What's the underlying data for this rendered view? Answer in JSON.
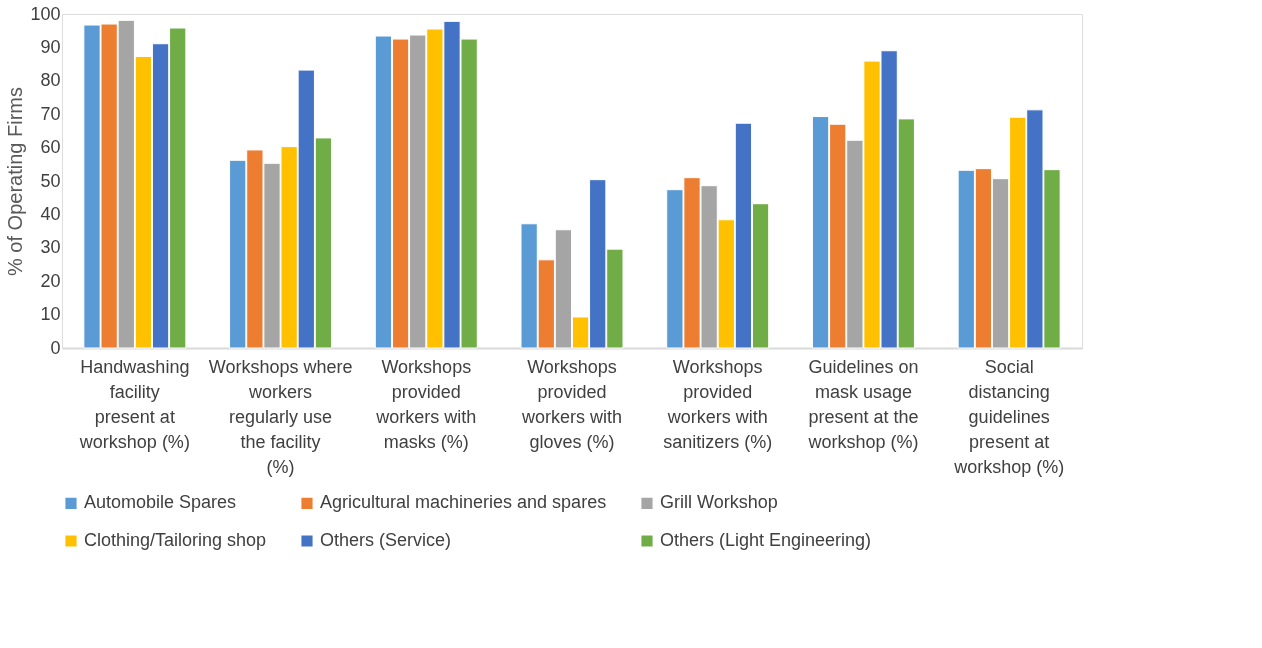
{
  "chart_data": {
    "type": "bar",
    "ylabel": "% of Operating Firms",
    "categories": [
      "Handwashing facility present at workshop (%)",
      "Workshops where workers regularly use the facility (%)",
      "Workshops provided workers with masks (%)",
      "Workshops provided workers with gloves (%)",
      "Workshops provided workers with sanitizers (%)",
      "Guidelines on mask usage present at the workshop (%)",
      "Social distancing guidelines present at workshop (%)"
    ],
    "series": [
      {
        "name": "Automobile Spares",
        "color": "#5b9bd5",
        "values": [
          96.7,
          56.2,
          93.4,
          37.2,
          47.4,
          69.3,
          53.2
        ]
      },
      {
        "name": "Agricultural machineries and spares",
        "color": "#ed7d31",
        "values": [
          97.0,
          59.3,
          92.5,
          26.4,
          51.0,
          67.0,
          53.7
        ]
      },
      {
        "name": "Grill Workshop",
        "color": "#a5a5a5",
        "values": [
          98.1,
          55.3,
          93.7,
          35.4,
          48.6,
          62.2,
          50.7
        ]
      },
      {
        "name": "Clothing/Tailoring shop",
        "color": "#ffc000",
        "values": [
          87.3,
          60.3,
          95.5,
          9.3,
          38.4,
          85.9,
          69.1
        ]
      },
      {
        "name": "Others (Service)",
        "color": "#4472c4",
        "values": [
          91.1,
          83.2,
          97.8,
          50.4,
          67.3,
          89.0,
          71.3
        ]
      },
      {
        "name": "Others (Light Engineering)",
        "color": "#70ad47",
        "values": [
          95.8,
          62.9,
          92.5,
          29.6,
          43.2,
          68.6,
          53.4
        ]
      }
    ],
    "ylim": [
      0,
      100
    ],
    "yticks": [
      0,
      10,
      20,
      30,
      40,
      50,
      60,
      70,
      80,
      90,
      100
    ],
    "grid": false,
    "legend": "bottom"
  }
}
